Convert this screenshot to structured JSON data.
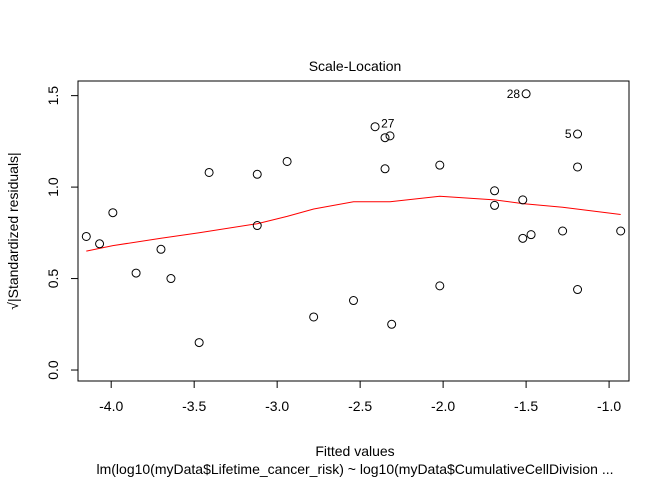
{
  "chart_data": {
    "type": "scatter",
    "title": "Scale-Location",
    "xlabel": "Fitted values",
    "ylabel": "√|Standardized residuals|",
    "sublabel": "lm(log10(myData$Lifetime_cancer_risk) ~ log10(myData$CumulativeCellDivision ...",
    "xlim": [
      -4.2,
      -0.88
    ],
    "ylim": [
      -0.06,
      1.58
    ],
    "xticks": [
      -4.0,
      -3.5,
      -3.0,
      -2.5,
      -2.0,
      -1.5,
      -1.0
    ],
    "xtick_labels": [
      "-4.0",
      "-3.5",
      "-3.0",
      "-2.5",
      "-2.0",
      "-1.5",
      "-1.0"
    ],
    "yticks": [
      0.0,
      0.5,
      1.0,
      1.5
    ],
    "ytick_labels": [
      "0.0",
      "0.5",
      "1.0",
      "1.5"
    ],
    "grid": false,
    "point_color": "#000000",
    "smoother_color": "#ff0000",
    "points": [
      {
        "x": -4.15,
        "y": 0.73
      },
      {
        "x": -4.07,
        "y": 0.69
      },
      {
        "x": -3.99,
        "y": 0.86
      },
      {
        "x": -3.85,
        "y": 0.53
      },
      {
        "x": -3.7,
        "y": 0.66
      },
      {
        "x": -3.64,
        "y": 0.5
      },
      {
        "x": -3.47,
        "y": 0.15
      },
      {
        "x": -3.41,
        "y": 1.08
      },
      {
        "x": -3.12,
        "y": 1.07
      },
      {
        "x": -3.12,
        "y": 0.79
      },
      {
        "x": -2.94,
        "y": 1.14
      },
      {
        "x": -2.78,
        "y": 0.29
      },
      {
        "x": -2.54,
        "y": 0.38
      },
      {
        "x": -2.41,
        "y": 1.33,
        "label": "27"
      },
      {
        "x": -2.35,
        "y": 1.27
      },
      {
        "x": -2.35,
        "y": 1.1
      },
      {
        "x": -2.32,
        "y": 1.28
      },
      {
        "x": -2.31,
        "y": 0.25
      },
      {
        "x": -2.02,
        "y": 1.12
      },
      {
        "x": -2.02,
        "y": 0.46
      },
      {
        "x": -1.69,
        "y": 0.98
      },
      {
        "x": -1.69,
        "y": 0.9
      },
      {
        "x": -1.52,
        "y": 0.93
      },
      {
        "x": -1.52,
        "y": 0.72
      },
      {
        "x": -1.5,
        "y": 1.51,
        "label": "28"
      },
      {
        "x": -1.47,
        "y": 0.74
      },
      {
        "x": -1.28,
        "y": 0.76
      },
      {
        "x": -1.19,
        "y": 1.29,
        "label": "5"
      },
      {
        "x": -1.19,
        "y": 1.11
      },
      {
        "x": -1.19,
        "y": 0.44
      },
      {
        "x": -0.93,
        "y": 0.76
      }
    ],
    "smoother": {
      "x": [
        -4.15,
        -3.99,
        -3.7,
        -3.47,
        -3.12,
        -2.94,
        -2.78,
        -2.54,
        -2.32,
        -2.02,
        -1.69,
        -1.52,
        -1.28,
        -0.93
      ],
      "y": [
        0.65,
        0.68,
        0.72,
        0.75,
        0.8,
        0.84,
        0.88,
        0.92,
        0.92,
        0.95,
        0.93,
        0.91,
        0.89,
        0.85
      ]
    }
  }
}
